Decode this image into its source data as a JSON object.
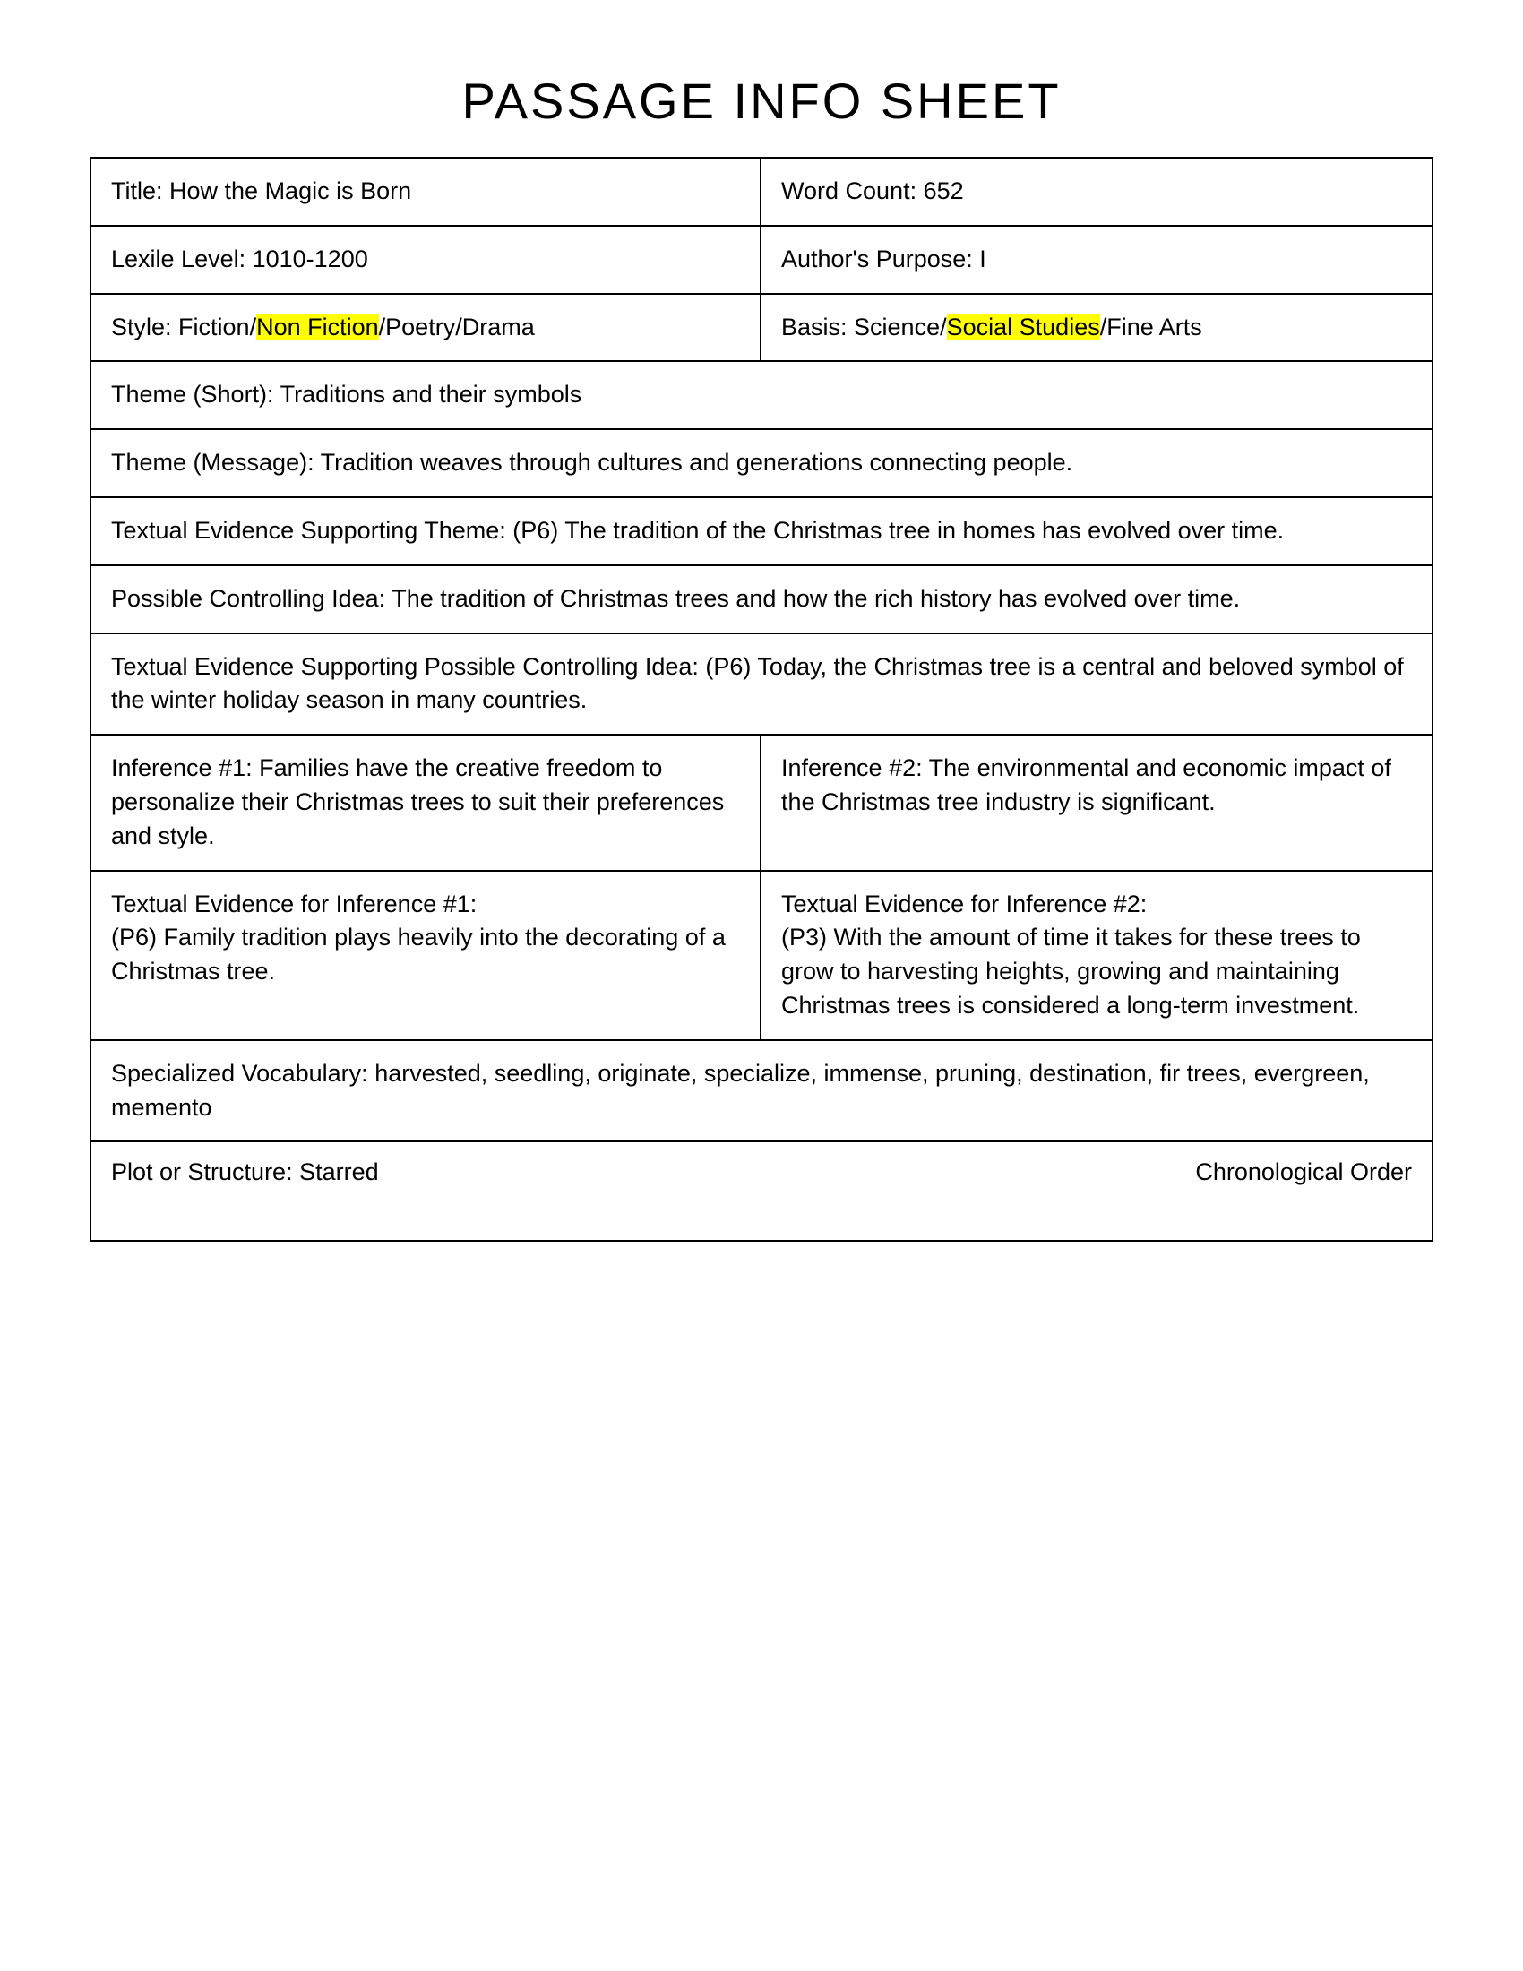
{
  "page_title": "Passage Info Sheet",
  "title": {
    "label": "Title: ",
    "value": "How the Magic is Born"
  },
  "word_count": {
    "label": "Word Count: ",
    "value": "652"
  },
  "lexile": {
    "label": "Lexile Level: ",
    "value": "1010-1200"
  },
  "purpose": {
    "label": "Author's Purpose: ",
    "value": "I"
  },
  "style": {
    "label": "Style: ",
    "opt1": "Fiction",
    "opt2": "Non Fiction",
    "opt3": "Poetry",
    "opt4": "Drama"
  },
  "basis": {
    "label": "Basis:  ",
    "opt1": "Science",
    "opt2": "Social Studies",
    "opt3": "Fine Arts"
  },
  "theme_short": {
    "label": "Theme (Short): ",
    "value": "Traditions and their symbols"
  },
  "theme_message": {
    "label": "Theme (Message): ",
    "value": "Tradition weaves through cultures and generations connecting people."
  },
  "evidence_theme": {
    "label": "Textual Evidence Supporting Theme: ",
    "value": "(P6) The tradition of the Christmas tree in homes has evolved over time."
  },
  "controlling_idea": {
    "label": "Possible Controlling Idea: ",
    "value": "The tradition of Christmas trees and how the rich history has evolved over time."
  },
  "evidence_controlling": {
    "label": "Textual Evidence Supporting Possible Controlling Idea: ",
    "value": "(P6) Today, the Christmas tree is a central and beloved symbol of the winter holiday season in many countries."
  },
  "inference1": {
    "label": "Inference #1: ",
    "value": "Families have the creative freedom to personalize their Christmas trees to suit their preferences and style."
  },
  "inference2": {
    "label": "Inference #2: ",
    "value": "The environmental and economic impact of the Christmas tree industry is significant."
  },
  "evidence_inf1": {
    "label": "Textual Evidence for Inference #1:",
    "value": "(P6) Family tradition plays heavily into the decorating of a Christmas tree."
  },
  "evidence_inf2": {
    "label": "Textual Evidence for Inference #2:",
    "value": "(P3) With the amount of time it takes for these trees to grow to harvesting heights, growing and maintaining Christmas trees is considered a long-term investment."
  },
  "vocab": {
    "label": "Specialized Vocabulary: ",
    "value": "harvested, seedling, originate, specialize, immense, pruning, destination, fir trees, evergreen, memento"
  },
  "structure": {
    "label": "Plot or Structure: ",
    "value": "Starred",
    "right": "Chronological Order"
  },
  "highlight_color": "#ffff00",
  "border_color": "#000000",
  "text_color": "#000000",
  "slash": "/"
}
